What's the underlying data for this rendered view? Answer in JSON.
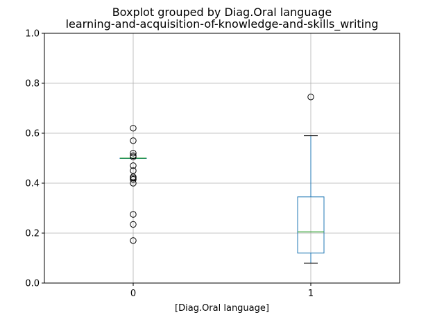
{
  "chart_data": {
    "type": "boxplot",
    "title": "Boxplot grouped by Diag.Oral language",
    "subtitle": "learning-and-acquisition-of-knowledge-and-skills_writing",
    "xlabel": "[Diag.Oral language]",
    "ylabel": "",
    "ylim": [
      0.0,
      1.0
    ],
    "yticks": [
      "0.0",
      "0.2",
      "0.4",
      "0.6",
      "0.8",
      "1.0"
    ],
    "grid": true,
    "categories": [
      "0",
      "1"
    ],
    "boxes": [
      {
        "category": "0",
        "q1": 0.5,
        "median": 0.5,
        "q3": 0.5,
        "whisker_low": 0.5,
        "whisker_high": 0.5,
        "outliers": [
          0.62,
          0.57,
          0.52,
          0.51,
          0.505,
          0.47,
          0.45,
          0.425,
          0.42,
          0.415,
          0.4,
          0.275,
          0.235,
          0.17
        ]
      },
      {
        "category": "1",
        "q1": 0.12,
        "median": 0.205,
        "q3": 0.345,
        "whisker_low": 0.08,
        "whisker_high": 0.59,
        "outliers": [
          0.745
        ]
      }
    ],
    "colors": {
      "box": "#1f77b4",
      "median": "#2ca02c",
      "whisker": "#1f77b4",
      "cap": "#000000",
      "grid": "#b0b0b0"
    }
  }
}
